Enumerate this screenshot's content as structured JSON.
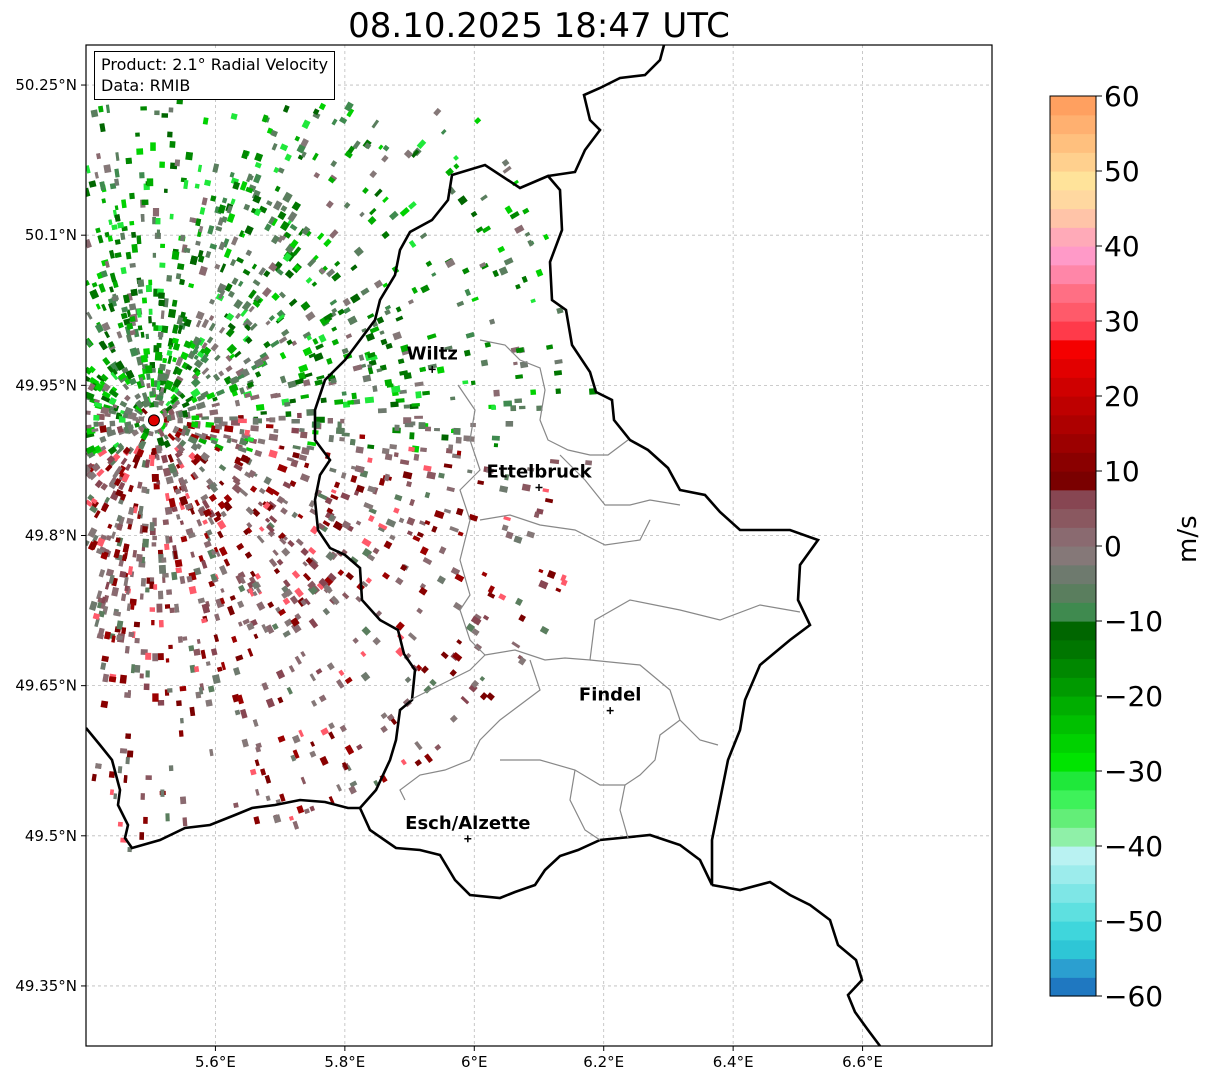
{
  "title": "08.10.2025 18:47 UTC",
  "info": {
    "product": "Product: 2.1° Radial Velocity",
    "data": "Data: RMIB"
  },
  "map": {
    "lon_range": [
      5.4,
      6.8
    ],
    "lat_range": [
      49.29,
      50.29
    ],
    "lon_ticks": [
      {
        "value": 5.6,
        "label": "5.6°E"
      },
      {
        "value": 5.8,
        "label": "5.8°E"
      },
      {
        "value": 6.0,
        "label": "6°E"
      },
      {
        "value": 6.2,
        "label": "6.2°E"
      },
      {
        "value": 6.4,
        "label": "6.4°E"
      },
      {
        "value": 6.6,
        "label": "6.6°E"
      }
    ],
    "lat_ticks": [
      {
        "value": 49.35,
        "label": "49.35°N"
      },
      {
        "value": 49.5,
        "label": "49.5°N"
      },
      {
        "value": 49.65,
        "label": "49.65°N"
      },
      {
        "value": 49.8,
        "label": "49.8°N"
      },
      {
        "value": 49.95,
        "label": "49.95°N"
      },
      {
        "value": 50.1,
        "label": "50.1°N"
      },
      {
        "value": 50.25,
        "label": "50.25°N"
      }
    ],
    "grid": true,
    "radar_site": {
      "lon": 5.505,
      "lat": 49.915
    },
    "cities": [
      {
        "name": "Wiltz",
        "lon": 5.935,
        "lat": 49.966
      },
      {
        "name": "Ettelbruck",
        "lon": 6.1,
        "lat": 49.848
      },
      {
        "name": "Findel",
        "lon": 6.21,
        "lat": 49.625
      },
      {
        "name": "Esch/Alzette",
        "lon": 5.99,
        "lat": 49.497
      }
    ]
  },
  "colorbar": {
    "label": "m/s",
    "range": [
      -60,
      60
    ],
    "ticks": [
      {
        "value": 60,
        "label": "60"
      },
      {
        "value": 50,
        "label": "50"
      },
      {
        "value": 40,
        "label": "40"
      },
      {
        "value": 30,
        "label": "30"
      },
      {
        "value": 20,
        "label": "20"
      },
      {
        "value": 10,
        "label": "10"
      },
      {
        "value": 0,
        "label": "0"
      },
      {
        "value": -10,
        "label": "−10"
      },
      {
        "value": -20,
        "label": "−20"
      },
      {
        "value": -30,
        "label": "−30"
      },
      {
        "value": -40,
        "label": "−40"
      },
      {
        "value": -50,
        "label": "−50"
      },
      {
        "value": -60,
        "label": "−60"
      }
    ],
    "colors": [
      "#1f78c1",
      "#2b9fd0",
      "#2ec6d6",
      "#3fd6dc",
      "#5ee0e0",
      "#7ee6e6",
      "#9cecec",
      "#b9f2f2",
      "#8ff0a8",
      "#63ee78",
      "#3ef25a",
      "#1fe83a",
      "#00e400",
      "#00d200",
      "#00c000",
      "#00ae00",
      "#009a00",
      "#008800",
      "#007600",
      "#006600",
      "#3f8a4f",
      "#5a7e5e",
      "#6e7a6e",
      "#857878",
      "#8a6a70",
      "#8a5860",
      "#874652",
      "#7a0000",
      "#8a0000",
      "#9c0000",
      "#ad0000",
      "#be0000",
      "#cf0000",
      "#e20000",
      "#f50000",
      "#ff3a4a",
      "#ff5a6a",
      "#ff6f84",
      "#ff86a8",
      "#ff9ac8",
      "#ffaab8",
      "#ffc4a8",
      "#ffd8a0",
      "#ffe39a",
      "#ffd08e",
      "#ffc07e",
      "#ffb070",
      "#ffa060"
    ]
  }
}
